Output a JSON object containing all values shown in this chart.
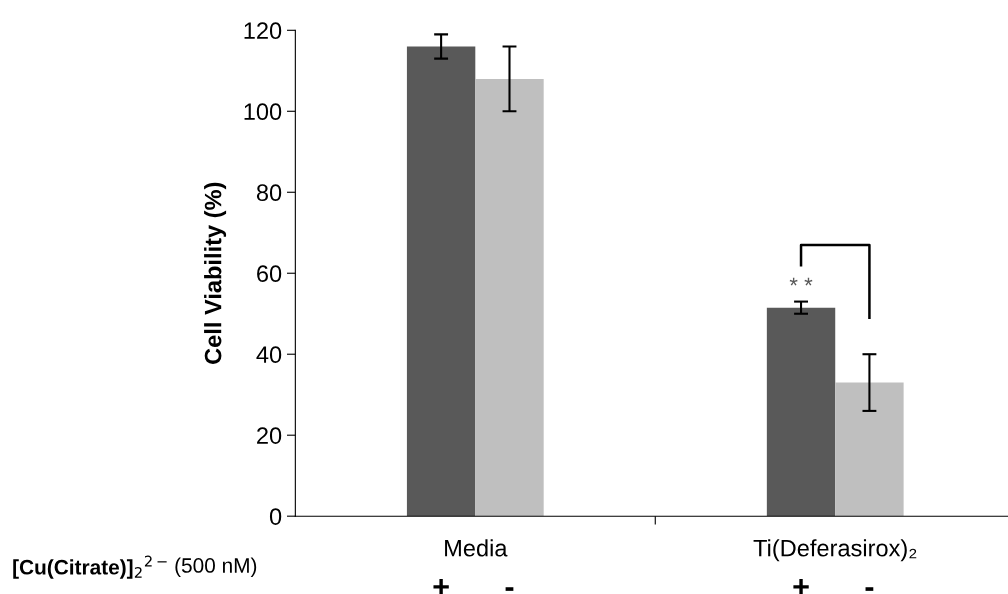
{
  "chart_data": {
    "type": "bar",
    "ylabel": "Cell Viability (%)",
    "categories": [
      "Media",
      "Ti(Deferasirox)₂"
    ],
    "series": [
      {
        "name": "+",
        "color": "#595959",
        "values": [
          116,
          51.5
        ],
        "errors": [
          3,
          1.5
        ]
      },
      {
        "name": "-",
        "color": "#bfbfbf",
        "values": [
          108,
          33
        ],
        "errors": [
          8,
          7
        ]
      }
    ],
    "ylim": [
      0,
      120
    ],
    "yticks": [
      0,
      20,
      40,
      60,
      80,
      100,
      120
    ],
    "grid": false,
    "legend": false,
    "annotations": [
      "[Cu(Citrate)]$_{2}$$^{2−}$",
      "(500 nM)",
      "* *"
    ]
  }
}
